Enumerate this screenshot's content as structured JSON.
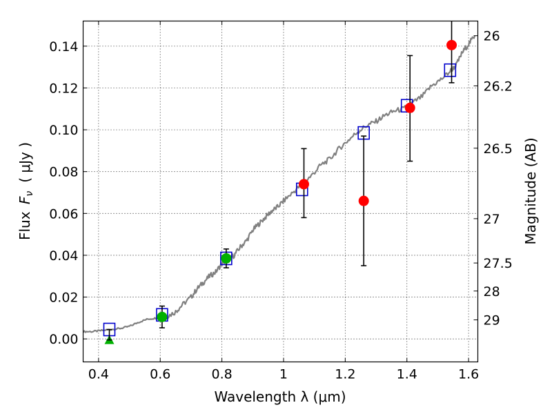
{
  "chart_data": {
    "type": "scatter",
    "xlabel": "Wavelength  λ (μm)",
    "ylabel": "Flux  F_ν  ( μJy )",
    "ylabel_parts": {
      "prefix": "Flux ",
      "symbol": "F",
      "subscript": "ν",
      "unit": "( μJy )"
    },
    "y2label": "Magnitude (AB)",
    "xlim": [
      0.35,
      1.63
    ],
    "ylim": [
      -0.011,
      0.152
    ],
    "grid": true,
    "x_ticks": [
      0.4,
      0.6,
      0.8,
      1.0,
      1.2,
      1.4,
      1.6
    ],
    "x_tick_labels": [
      "0.4",
      "0.6",
      "0.8",
      "1",
      "1.2",
      "1.4",
      "1.6"
    ],
    "y_ticks": [
      0.0,
      0.02,
      0.04,
      0.06,
      0.08,
      0.1,
      0.12,
      0.14
    ],
    "y_tick_labels": [
      "0.00",
      "0.02",
      "0.04",
      "0.06",
      "0.08",
      "0.10",
      "0.12",
      "0.14"
    ],
    "y2_ticks": [
      {
        "label": "26",
        "flux": 0.145
      },
      {
        "label": "26.2",
        "flux": 0.121
      },
      {
        "label": "26.5",
        "flux": 0.0912
      },
      {
        "label": "27",
        "flux": 0.0575
      },
      {
        "label": "27.5",
        "flux": 0.0363
      },
      {
        "label": "28",
        "flux": 0.0229
      },
      {
        "label": "29",
        "flux": 0.0091
      }
    ],
    "series": [
      {
        "name": "model_spectrum",
        "kind": "line",
        "color": "#808080",
        "x": [
          0.35,
          0.38,
          0.41,
          0.44,
          0.47,
          0.5,
          0.53,
          0.56,
          0.59,
          0.62,
          0.65,
          0.67,
          0.7,
          0.72,
          0.74,
          0.76,
          0.78,
          0.8,
          0.82,
          0.84,
          0.86,
          0.88,
          0.9,
          0.92,
          0.94,
          0.96,
          0.98,
          1.0,
          1.03,
          1.06,
          1.09,
          1.12,
          1.15,
          1.18,
          1.21,
          1.24,
          1.27,
          1.3,
          1.33,
          1.36,
          1.39,
          1.42,
          1.45,
          1.48,
          1.51,
          1.54,
          1.56,
          1.58,
          1.6,
          1.62
        ],
        "y": [
          0.0035,
          0.0035,
          0.004,
          0.0045,
          0.005,
          0.006,
          0.008,
          0.0095,
          0.01,
          0.0105,
          0.013,
          0.016,
          0.02,
          0.024,
          0.027,
          0.03,
          0.032,
          0.036,
          0.038,
          0.04,
          0.044,
          0.047,
          0.052,
          0.055,
          0.058,
          0.061,
          0.063,
          0.066,
          0.07,
          0.074,
          0.078,
          0.083,
          0.086,
          0.091,
          0.095,
          0.099,
          0.102,
          0.104,
          0.107,
          0.109,
          0.11,
          0.113,
          0.116,
          0.121,
          0.124,
          0.128,
          0.131,
          0.137,
          0.141,
          0.145
        ]
      },
      {
        "name": "model_photometry",
        "kind": "open_square",
        "color": "#0000cc",
        "x": [
          0.435,
          0.606,
          0.814,
          1.06,
          1.26,
          1.4,
          1.54
        ],
        "y": [
          0.0045,
          0.0115,
          0.0385,
          0.0715,
          0.0985,
          0.1115,
          0.1285
        ]
      },
      {
        "name": "observed_optical",
        "kind": "filled_circle",
        "color": "#00b000",
        "x": [
          0.606,
          0.814
        ],
        "y": [
          0.0105,
          0.0385
        ],
        "yerr": [
          0.0052,
          0.0045
        ]
      },
      {
        "name": "observed_nir",
        "kind": "filled_circle",
        "color": "#ff0000",
        "x": [
          1.066,
          1.26,
          1.41,
          1.545
        ],
        "y": [
          0.074,
          0.066,
          0.1105,
          0.1405
        ],
        "yerr_low": [
          0.016,
          0.031,
          0.0255,
          0.018
        ],
        "yerr_high": [
          0.017,
          0.031,
          0.025,
          0.03
        ]
      },
      {
        "name": "upper_limit",
        "kind": "triangle",
        "color": "#00b000",
        "x": [
          0.435
        ],
        "y": [
          -0.0005
        ],
        "yerr": [
          0.005
        ]
      }
    ]
  }
}
